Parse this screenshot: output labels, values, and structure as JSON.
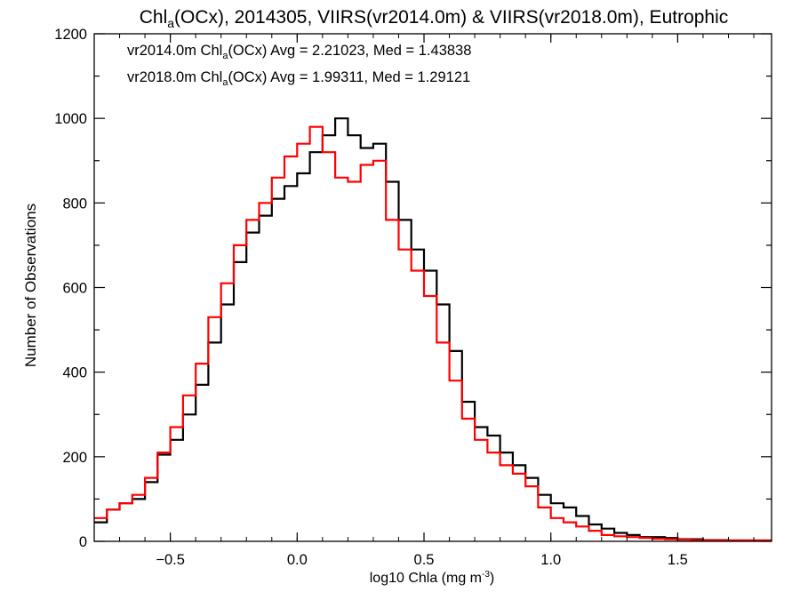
{
  "chart_data": {
    "type": "line",
    "title_parts": [
      "Chl",
      "a",
      "(OCx), 2014305, VIIRS(vr2014.0m) & VIIRS(vr2018.0m), Eutrophic"
    ],
    "xlabel_parts": [
      "log10 Chla (mg m",
      "-3",
      ")"
    ],
    "ylabel": "Number of Observations",
    "xlim": [
      -0.8,
      1.87
    ],
    "ylim": [
      0,
      1200
    ],
    "xticks": [
      -0.5,
      0.0,
      0.5,
      1.0,
      1.5
    ],
    "xtick_labels": [
      "−0.5",
      "0.0",
      "0.5",
      "1.0",
      "1.5"
    ],
    "yticks": [
      0,
      200,
      400,
      600,
      800,
      1000,
      1200
    ],
    "ytick_labels": [
      "0",
      "200",
      "400",
      "600",
      "800",
      "1000",
      "1200"
    ],
    "grid": false,
    "legend_placement": "top-left",
    "series": [
      {
        "name": "vr2014.0m",
        "color": "#000000",
        "legend_parts": [
          "vr2014.0m Chl",
          "a",
          "(OCx) Avg = 2.21023, Med = 1.43838"
        ],
        "x": [
          -0.8,
          -0.75,
          -0.7,
          -0.65,
          -0.6,
          -0.55,
          -0.5,
          -0.45,
          -0.4,
          -0.35,
          -0.3,
          -0.25,
          -0.2,
          -0.15,
          -0.1,
          -0.05,
          0.0,
          0.05,
          0.1,
          0.15,
          0.2,
          0.25,
          0.3,
          0.35,
          0.4,
          0.45,
          0.5,
          0.55,
          0.6,
          0.65,
          0.7,
          0.75,
          0.8,
          0.85,
          0.9,
          0.95,
          1.0,
          1.05,
          1.1,
          1.15,
          1.2,
          1.25,
          1.3,
          1.35,
          1.4,
          1.45,
          1.5,
          1.55,
          1.6,
          1.65,
          1.7,
          1.75,
          1.8,
          1.85
        ],
        "values": [
          45,
          75,
          90,
          100,
          140,
          205,
          240,
          300,
          370,
          470,
          560,
          660,
          730,
          770,
          810,
          840,
          870,
          920,
          960,
          1000,
          960,
          930,
          940,
          850,
          760,
          690,
          640,
          560,
          450,
          330,
          270,
          250,
          210,
          180,
          150,
          110,
          90,
          80,
          60,
          40,
          30,
          20,
          15,
          10,
          10,
          8,
          5,
          5,
          3,
          3,
          2,
          2,
          2,
          2
        ]
      },
      {
        "name": "vr2018.0m",
        "color": "#ff0000",
        "legend_parts": [
          "vr2018.0m Chl",
          "a",
          "(OCx) Avg = 1.99311, Med = 1.29121"
        ],
        "x": [
          -0.8,
          -0.75,
          -0.7,
          -0.65,
          -0.6,
          -0.55,
          -0.5,
          -0.45,
          -0.4,
          -0.35,
          -0.3,
          -0.25,
          -0.2,
          -0.15,
          -0.1,
          -0.05,
          0.0,
          0.05,
          0.1,
          0.15,
          0.2,
          0.25,
          0.3,
          0.35,
          0.4,
          0.45,
          0.5,
          0.55,
          0.6,
          0.65,
          0.7,
          0.75,
          0.8,
          0.85,
          0.9,
          0.95,
          1.0,
          1.05,
          1.1,
          1.15,
          1.2,
          1.25,
          1.3,
          1.35,
          1.4,
          1.45,
          1.5,
          1.55,
          1.6,
          1.65,
          1.7,
          1.75,
          1.8,
          1.85
        ],
        "values": [
          55,
          75,
          90,
          110,
          150,
          210,
          270,
          345,
          420,
          530,
          610,
          700,
          760,
          800,
          860,
          910,
          940,
          980,
          920,
          860,
          850,
          890,
          900,
          760,
          690,
          640,
          580,
          470,
          380,
          290,
          240,
          210,
          180,
          160,
          130,
          80,
          55,
          45,
          35,
          25,
          15,
          12,
          10,
          8,
          6,
          5,
          4,
          3,
          2,
          2,
          2,
          2,
          2,
          2
        ]
      }
    ]
  }
}
